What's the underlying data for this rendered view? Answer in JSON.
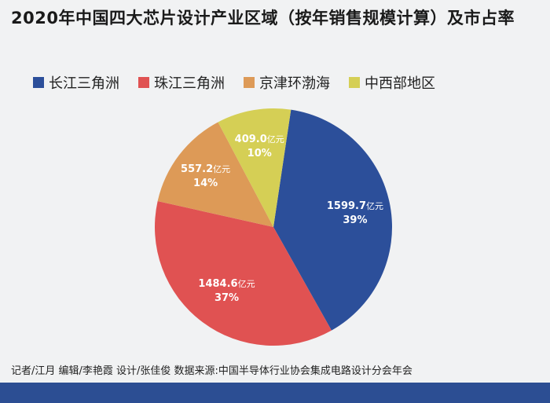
{
  "title": "2020年中国四大芯片设计产业区域（按年销售规模计算）及市占率",
  "credits": "记者/江月  编辑/李艳霞  设计/张佳俊  数据来源:中国半导体行业协会集成电路设计分会年会",
  "chart_data": {
    "type": "pie",
    "unit": "亿元",
    "slices": [
      {
        "name": "长江三角洲",
        "value": 1599.7,
        "percent": "39%",
        "color": "#2c4f9a"
      },
      {
        "name": "珠江三角洲",
        "value": 1484.6,
        "percent": "37%",
        "color": "#e05252"
      },
      {
        "name": "京津环渤海",
        "value": 557.2,
        "percent": "14%",
        "color": "#dd9a57"
      },
      {
        "name": "中西部地区",
        "value": 409.0,
        "percent": "10%",
        "color": "#d5cf55"
      }
    ]
  }
}
